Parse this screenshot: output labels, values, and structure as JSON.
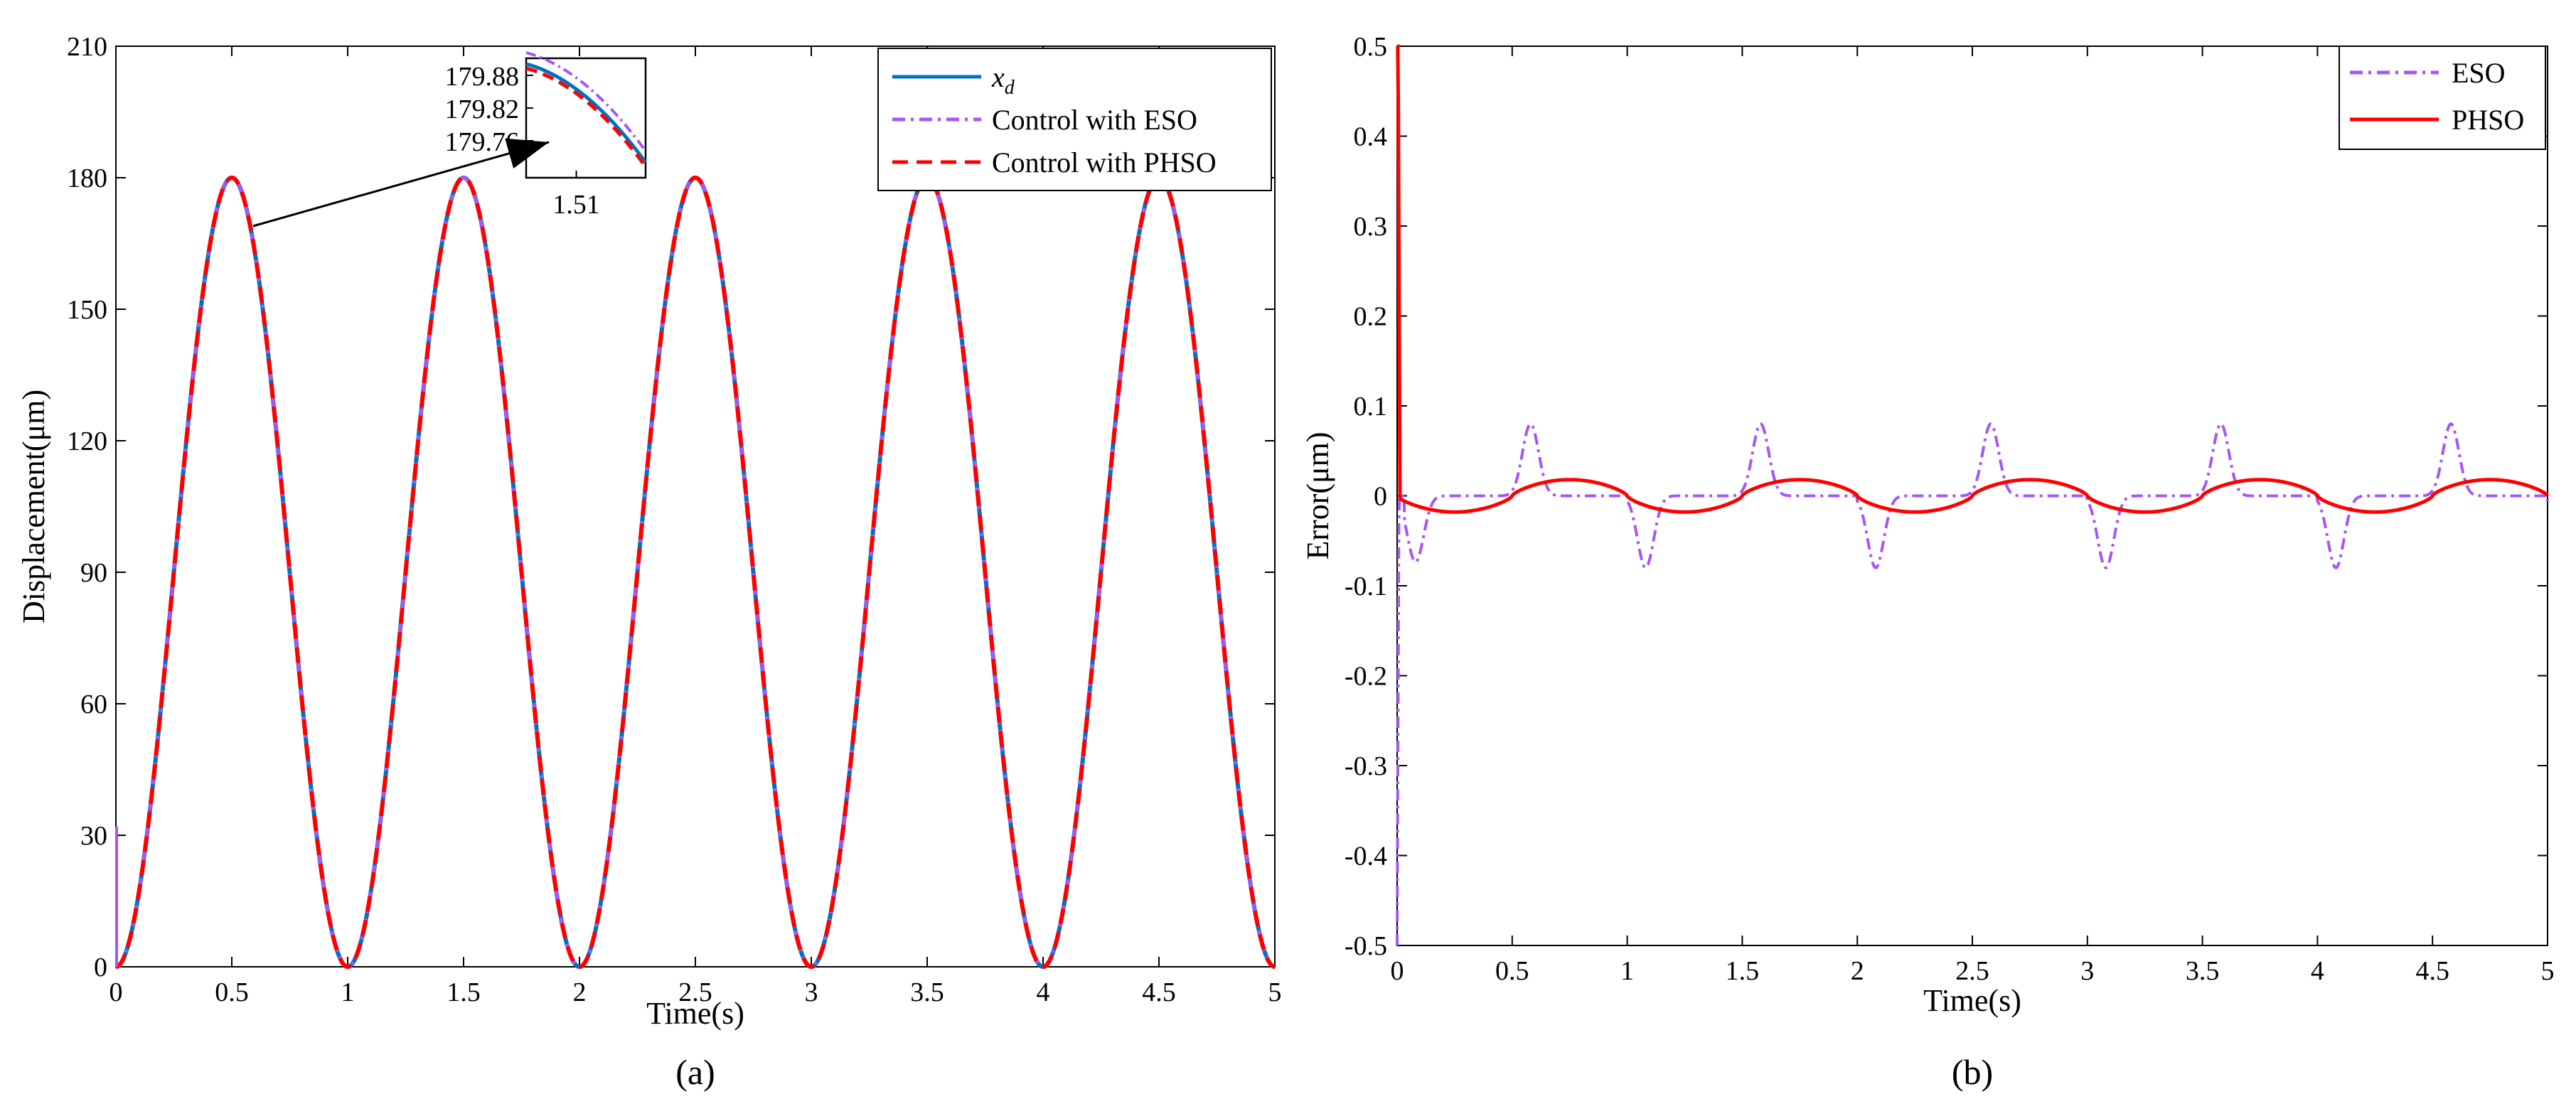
{
  "chart_data": [
    {
      "type": "line",
      "panel_label": "(a)",
      "xlabel": "Time(s)",
      "ylabel": "Displacement(μm)",
      "xlim": [
        0,
        5
      ],
      "ylim": [
        0,
        210
      ],
      "xticks": [
        0,
        0.5,
        1,
        1.5,
        2,
        2.5,
        3,
        3.5,
        4,
        4.5,
        5
      ],
      "xtick_labels": [
        "0",
        "0.5",
        "1",
        "1.5",
        "2",
        "2.5",
        "3",
        "3.5",
        "4",
        "4.5",
        "5"
      ],
      "yticks": [
        0,
        30,
        60,
        90,
        120,
        150,
        180,
        210
      ],
      "ytick_labels": [
        "0",
        "30",
        "60",
        "90",
        "120",
        "150",
        "180",
        "210"
      ],
      "grid": false,
      "legend_position": "top-right",
      "signal": {
        "form": "90*(1-cos(2*pi*t))",
        "period_s": 1,
        "peak": 180
      },
      "series": [
        {
          "name": "x_d",
          "legend_main": "x",
          "legend_sub": "d",
          "color": "#0072BD",
          "style": "solid"
        },
        {
          "name": "Control with ESO",
          "color": "#A855F7",
          "style": "dashdot"
        },
        {
          "name": "Control with PHSO",
          "color": "#FF0000",
          "style": "dashed"
        }
      ],
      "inset": {
        "xtick_labels": [
          "1.51"
        ],
        "ytick_labels": [
          "179.88",
          "179.82",
          "179.76"
        ],
        "x_center": 1.51
      }
    },
    {
      "type": "line",
      "panel_label": "(b)",
      "xlabel": "Time(s)",
      "ylabel": "Error(μm)",
      "xlim": [
        0,
        5
      ],
      "ylim": [
        -0.5,
        0.5
      ],
      "xticks": [
        0,
        0.5,
        1,
        1.5,
        2,
        2.5,
        3,
        3.5,
        4,
        4.5,
        5
      ],
      "xtick_labels": [
        "0",
        "0.5",
        "1",
        "1.5",
        "2",
        "2.5",
        "3",
        "3.5",
        "4",
        "4.5",
        "5"
      ],
      "yticks": [
        -0.5,
        -0.4,
        -0.3,
        -0.2,
        -0.1,
        0,
        0.1,
        0.2,
        0.3,
        0.4,
        0.5
      ],
      "ytick_labels": [
        "-0.5",
        "-0.4",
        "-0.3",
        "-0.2",
        "-0.1",
        "0",
        "0.1",
        "0.2",
        "0.3",
        "0.4",
        "0.5"
      ],
      "grid": false,
      "legend_position": "top-right",
      "series": [
        {
          "name": "ESO",
          "color": "#A855F7",
          "style": "dashdot",
          "initial_transient": -0.5,
          "pulse_peak": 0.08,
          "pulse_peak_time_offset_s": 0.58,
          "pulse_trough": -0.08,
          "pulse_trough_time_offset_s": 0.08
        },
        {
          "name": "PHSO",
          "color": "#FF0000",
          "style": "solid",
          "initial_transient": 0.5,
          "wave_amplitude": 0.018
        }
      ]
    }
  ]
}
